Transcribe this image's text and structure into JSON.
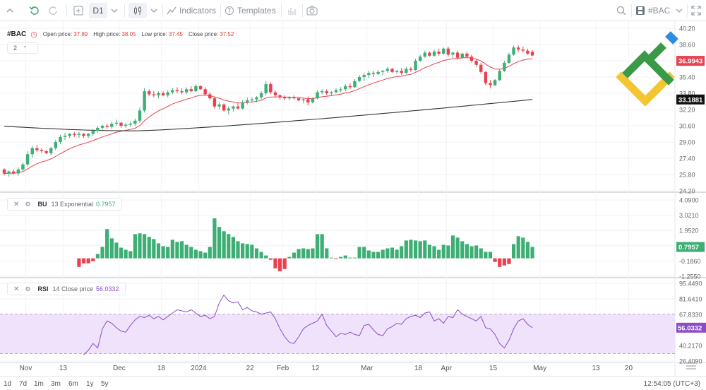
{
  "toolbar": {
    "timeframe": "D1",
    "indicators_label": "Indicators",
    "templates_label": "Templates",
    "symbol_label": "#BAC"
  },
  "legend": {
    "symbol": "#BAC",
    "open_label": "Open price:",
    "open_value": "37.89",
    "high_label": "High price:",
    "high_value": "38.05",
    "low_label": "Low price:",
    "low_value": "37.45",
    "close_label": "Close price:",
    "close_value": "37.52",
    "collapse_count": "2"
  },
  "bu_header": {
    "name": "BU",
    "params": "13 Exponential",
    "value": "0.7957"
  },
  "rsi_header": {
    "name": "RSI",
    "params": "14 Close price",
    "value": "56.0332"
  },
  "bottom": {
    "ranges": [
      "1d",
      "7d",
      "1m",
      "3m",
      "6m",
      "1y",
      "5y"
    ],
    "clock": "12:54:05 (UTC+3)"
  },
  "colors": {
    "up": "#3dae74",
    "down": "#e8414f",
    "ma_fast": "#e8414f",
    "ma_slow": "#333333",
    "rsi_line": "#8a4cc7",
    "rsi_band": "#efe3fb",
    "logo_green": "#3a9a47",
    "logo_yellow": "#f2c531",
    "logo_blue": "#2d8ee0"
  },
  "chart_data": [
    {
      "type": "candlestick",
      "title": "#BAC",
      "ylim": [
        24.2,
        40.2
      ],
      "y_ticks": [
        "40.20",
        "38.60",
        "37.00",
        "35.40",
        "33.80",
        "32.20",
        "30.60",
        "29.00",
        "27.40",
        "25.80",
        "24.20"
      ],
      "x_ticks": [
        "Nov",
        "13",
        "Dec",
        "18",
        "2024",
        "22",
        "Feb",
        "12",
        "Mar",
        "18",
        "Apr",
        "15",
        "May",
        "13",
        "20"
      ],
      "price_markers": [
        {
          "label": "36.9943",
          "value": 36.9943,
          "color": "#e8414f"
        },
        {
          "label": "33.1881",
          "value": 33.1881,
          "color": "#111111"
        }
      ],
      "ohlc": [
        [
          26.3,
          26.4,
          25.7,
          25.9
        ],
        [
          25.9,
          26.2,
          25.6,
          26.1
        ],
        [
          26.1,
          26.3,
          25.8,
          25.9
        ],
        [
          25.9,
          26.5,
          25.7,
          26.3
        ],
        [
          26.3,
          27.0,
          26.1,
          26.8
        ],
        [
          26.8,
          28.1,
          26.6,
          27.8
        ],
        [
          27.8,
          28.6,
          27.5,
          28.4
        ],
        [
          28.4,
          28.7,
          28.0,
          28.2
        ],
        [
          28.2,
          28.4,
          27.9,
          28.1
        ],
        [
          28.1,
          28.2,
          27.8,
          27.9
        ],
        [
          27.9,
          28.5,
          27.7,
          28.4
        ],
        [
          28.4,
          29.2,
          28.2,
          29.0
        ],
        [
          29.0,
          29.7,
          28.8,
          29.5
        ],
        [
          29.5,
          29.9,
          29.2,
          29.6
        ],
        [
          29.6,
          29.9,
          29.4,
          29.8
        ],
        [
          29.8,
          30.0,
          29.5,
          29.7
        ],
        [
          29.7,
          30.0,
          29.4,
          29.8
        ],
        [
          29.8,
          29.9,
          29.4,
          29.6
        ],
        [
          29.6,
          29.9,
          29.4,
          29.8
        ],
        [
          29.8,
          30.3,
          29.6,
          30.1
        ],
        [
          30.1,
          30.6,
          29.9,
          30.4
        ],
        [
          30.4,
          30.7,
          30.2,
          30.6
        ],
        [
          30.6,
          30.8,
          30.3,
          30.5
        ],
        [
          30.5,
          31.0,
          30.3,
          30.8
        ],
        [
          30.8,
          31.2,
          30.6,
          30.9
        ],
        [
          30.9,
          31.0,
          30.4,
          30.6
        ],
        [
          30.6,
          30.9,
          30.4,
          30.7
        ],
        [
          30.7,
          31.0,
          30.5,
          30.8
        ],
        [
          30.8,
          31.3,
          30.6,
          31.1
        ],
        [
          31.1,
          32.4,
          30.9,
          32.1
        ],
        [
          32.1,
          34.3,
          31.9,
          34.0
        ],
        [
          34.0,
          34.2,
          33.5,
          33.7
        ],
        [
          33.7,
          34.0,
          33.4,
          33.6
        ],
        [
          33.6,
          34.0,
          33.3,
          33.8
        ],
        [
          33.8,
          34.0,
          33.5,
          33.6
        ],
        [
          33.6,
          34.1,
          33.4,
          33.9
        ],
        [
          33.9,
          34.3,
          33.7,
          34.1
        ],
        [
          34.1,
          34.4,
          33.8,
          34.0
        ],
        [
          34.0,
          34.3,
          33.7,
          33.9
        ],
        [
          33.9,
          34.4,
          33.7,
          34.2
        ],
        [
          34.2,
          34.5,
          33.9,
          34.0
        ],
        [
          34.0,
          34.7,
          33.9,
          34.5
        ],
        [
          34.5,
          34.6,
          34.1,
          34.2
        ],
        [
          34.2,
          34.4,
          33.6,
          33.7
        ],
        [
          33.7,
          33.9,
          33.1,
          33.3
        ],
        [
          33.3,
          33.5,
          32.3,
          32.5
        ],
        [
          32.5,
          32.9,
          32.2,
          32.7
        ],
        [
          32.7,
          32.8,
          32.0,
          32.1
        ],
        [
          32.1,
          32.5,
          31.7,
          32.3
        ],
        [
          32.3,
          32.6,
          32.0,
          32.5
        ],
        [
          32.5,
          32.9,
          32.2,
          32.3
        ],
        [
          32.3,
          33.1,
          32.2,
          32.9
        ],
        [
          32.9,
          33.4,
          32.7,
          33.1
        ],
        [
          33.1,
          33.4,
          32.9,
          33.2
        ],
        [
          33.2,
          33.5,
          32.9,
          33.4
        ],
        [
          33.4,
          34.0,
          33.2,
          33.8
        ],
        [
          33.8,
          35.0,
          33.6,
          34.7
        ],
        [
          34.7,
          34.9,
          33.7,
          33.9
        ],
        [
          33.9,
          34.1,
          33.4,
          33.6
        ],
        [
          33.6,
          33.7,
          33.2,
          33.4
        ],
        [
          33.4,
          33.6,
          33.1,
          33.3
        ],
        [
          33.3,
          33.5,
          33.1,
          33.4
        ],
        [
          33.4,
          33.6,
          33.2,
          33.3
        ],
        [
          33.3,
          33.4,
          33.0,
          33.1
        ],
        [
          33.1,
          33.3,
          32.8,
          33.2
        ],
        [
          33.2,
          33.5,
          32.6,
          32.9
        ],
        [
          32.9,
          33.4,
          32.8,
          33.3
        ],
        [
          33.3,
          34.1,
          33.2,
          33.9
        ],
        [
          33.9,
          34.2,
          33.7,
          34.0
        ],
        [
          34.0,
          34.2,
          33.6,
          33.8
        ],
        [
          33.8,
          34.0,
          33.6,
          33.9
        ],
        [
          33.9,
          34.3,
          33.8,
          34.1
        ],
        [
          34.1,
          34.4,
          33.9,
          34.2
        ],
        [
          34.2,
          34.7,
          34.0,
          34.5
        ],
        [
          34.5,
          34.8,
          34.2,
          34.4
        ],
        [
          34.4,
          35.2,
          34.3,
          35.0
        ],
        [
          35.0,
          35.6,
          34.9,
          35.4
        ],
        [
          35.4,
          35.8,
          35.0,
          35.6
        ],
        [
          35.6,
          36.0,
          35.3,
          35.8
        ],
        [
          35.8,
          36.0,
          35.4,
          35.7
        ],
        [
          35.7,
          36.1,
          35.6,
          35.9
        ],
        [
          35.9,
          36.1,
          35.6,
          36.0
        ],
        [
          36.0,
          36.4,
          35.8,
          36.2
        ],
        [
          36.2,
          36.3,
          35.8,
          35.9
        ],
        [
          35.9,
          36.1,
          35.7,
          36.0
        ],
        [
          36.0,
          36.3,
          35.6,
          35.8
        ],
        [
          35.8,
          36.4,
          35.7,
          36.2
        ],
        [
          36.2,
          36.4,
          35.9,
          36.1
        ],
        [
          36.1,
          37.2,
          36.0,
          37.0
        ],
        [
          37.0,
          37.6,
          36.9,
          37.4
        ],
        [
          37.4,
          38.0,
          37.3,
          37.8
        ],
        [
          37.8,
          37.9,
          37.4,
          37.5
        ],
        [
          37.5,
          38.1,
          37.4,
          37.9
        ],
        [
          37.9,
          38.2,
          37.5,
          37.7
        ],
        [
          37.7,
          38.3,
          37.6,
          38.2
        ],
        [
          38.2,
          38.4,
          37.4,
          37.6
        ],
        [
          37.6,
          37.9,
          37.3,
          37.8
        ],
        [
          37.8,
          38.0,
          37.1,
          37.3
        ],
        [
          37.3,
          37.8,
          37.2,
          37.7
        ],
        [
          37.7,
          37.9,
          37.3,
          37.4
        ],
        [
          37.4,
          37.6,
          36.8,
          37.0
        ],
        [
          37.0,
          37.2,
          36.4,
          36.6
        ],
        [
          36.6,
          36.8,
          35.7,
          35.9
        ],
        [
          35.9,
          36.0,
          34.6,
          34.8
        ],
        [
          34.8,
          35.1,
          34.3,
          34.6
        ],
        [
          34.6,
          35.2,
          34.5,
          35.1
        ],
        [
          35.1,
          36.2,
          35.0,
          36.0
        ],
        [
          36.0,
          37.0,
          35.9,
          36.8
        ],
        [
          36.8,
          37.8,
          36.7,
          37.6
        ],
        [
          37.6,
          38.5,
          37.5,
          38.3
        ],
        [
          38.3,
          38.5,
          37.9,
          38.1
        ],
        [
          38.1,
          38.4,
          37.8,
          38.0
        ],
        [
          38.0,
          38.2,
          37.6,
          37.7
        ],
        [
          37.89,
          38.05,
          37.45,
          37.52
        ]
      ]
    },
    {
      "type": "bar",
      "title": "BU 13 Exponential",
      "ylim": [
        -1.255,
        4.09
      ],
      "y_ticks": [
        "4.0900",
        "3.0210",
        "1.9520",
        "0.8830",
        "-0.1860",
        "-1.2550"
      ],
      "values": [
        -0.6,
        -0.35,
        -0.35,
        -0.2,
        0.3,
        0.8,
        2.05,
        1.4,
        1.1,
        0.75,
        0.6,
        0.5,
        1.7,
        1.75,
        1.7,
        1.5,
        1.35,
        1.05,
        0.85,
        0.8,
        1.3,
        1.15,
        1.2,
        0.95,
        0.8,
        0.6,
        0.5,
        0.4,
        0.8,
        2.8,
        2.2,
        1.9,
        1.7,
        1.5,
        1.2,
        1.05,
        1.0,
        0.95,
        0.7,
        0.45,
        0.2,
        -0.1,
        -0.7,
        -0.9,
        -0.75,
        0.1,
        0.4,
        0.65,
        0.7,
        0.65,
        0.7,
        1.7,
        1.7,
        0.7,
        0.05,
        -0.05,
        0.1,
        0.2,
        0.05,
        0.05,
        0.8,
        0.8,
        0.55,
        0.45,
        0.45,
        0.6,
        0.7,
        0.75,
        0.6,
        0.85,
        1.25,
        1.3,
        1.25,
        1.2,
        1.25,
        0.95,
        0.85,
        0.6,
        0.95,
        0.9,
        1.6,
        1.45,
        1.2,
        1.0,
        0.85,
        0.9,
        0.7,
        0.45,
        0.45,
        -0.25,
        -0.6,
        -0.5,
        -0.4,
        1.0,
        1.55,
        1.45,
        1.15,
        0.8
      ]
    },
    {
      "type": "line",
      "title": "RSI 14 Close price",
      "ylim": [
        26.409,
        95.449
      ],
      "y_ticks": [
        "95.4490",
        "81.6410",
        "67.8330",
        "54.0250",
        "40.2170",
        "26.4090"
      ],
      "band": [
        33.0,
        68.0
      ],
      "values": [
        32.0,
        36.0,
        42.0,
        38.0,
        55.0,
        62.0,
        60.0,
        56.0,
        53.0,
        52.0,
        58.0,
        63.0,
        66.0,
        65.0,
        67.0,
        64.0,
        66.0,
        63.0,
        66.0,
        69.0,
        72.0,
        71.0,
        70.0,
        72.0,
        69.0,
        66.0,
        67.0,
        64.0,
        66.0,
        78.0,
        85.0,
        80.0,
        78.0,
        79.0,
        72.0,
        74.0,
        71.0,
        70.0,
        68.0,
        69.0,
        70.0,
        64.0,
        55.0,
        48.0,
        43.0,
        42.0,
        48.0,
        55.0,
        58.0,
        60.0,
        62.0,
        68.0,
        58.0,
        53.0,
        48.0,
        51.0,
        50.0,
        52.0,
        50.0,
        49.0,
        58.0,
        59.0,
        54.0,
        50.0,
        49.0,
        55.0,
        57.0,
        60.0,
        59.0,
        64.0,
        66.0,
        67.0,
        65.0,
        69.0,
        70.0,
        62.0,
        64.0,
        60.0,
        66.0,
        65.0,
        72.0,
        68.0,
        66.0,
        64.0,
        62.0,
        66.0,
        56.0,
        55.0,
        50.0,
        42.0,
        38.0,
        45.0,
        55.0,
        62.0,
        64.0,
        59.0,
        56.03
      ]
    }
  ]
}
